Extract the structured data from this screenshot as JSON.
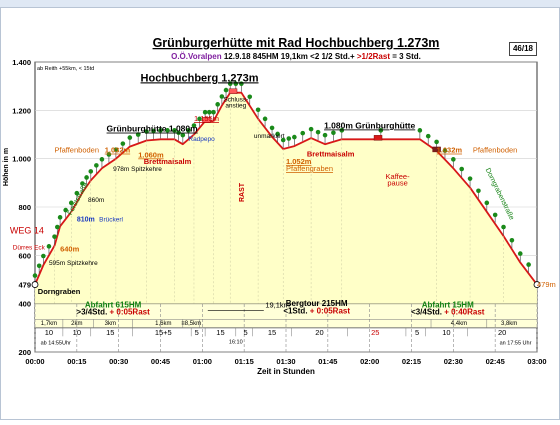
{
  "page": {
    "badge": "46/18"
  },
  "header": {
    "title": "Grünburgerhütte mit Rad",
    "title_peak": "Hochbuchberg 1.273m",
    "region": "O.Ö.Voralpen",
    "date": "12.9.18",
    "ascent": "845HM",
    "distance": "19,1km",
    "time_prefix": "<2 1/2 Std.+",
    "time_rest": ">1/2Rast",
    "time_total": "= 3 Std.",
    "corner_note": "ab Reith +55km, < 15td"
  },
  "colors": {
    "profile_fill": "#ffffc8",
    "profile_line": "#d81818",
    "bottom_band": "#ffffd8",
    "green_text": "#108010",
    "orange_text": "#d06000",
    "red_text": "#c80000",
    "blue_text": "#1838c0",
    "purple_text": "#8020a0",
    "tree": "#1a8a1a"
  },
  "chart_data": {
    "type": "area",
    "title": "Grünburgerhütte mit Rad Hochbuchberg 1.273m",
    "ylabel": "Höhen in m",
    "xlabel": "Zeit in Stunden",
    "ylim": [
      200,
      1400
    ],
    "xlim": [
      0,
      180
    ],
    "grid": true,
    "y_ticks": [
      {
        "v": 200,
        "label": "200"
      },
      {
        "v": 400,
        "label": "400"
      },
      {
        "v": 479,
        "label": "479"
      },
      {
        "v": 600,
        "label": "600"
      },
      {
        "v": 800,
        "label": "800"
      },
      {
        "v": 1000,
        "label": "1.000"
      },
      {
        "v": 1200,
        "label": "1.200"
      },
      {
        "v": 1400,
        "label": "1.400"
      }
    ],
    "x_ticks": [
      {
        "v": 0,
        "label": "00:00"
      },
      {
        "v": 15,
        "label": "00:15"
      },
      {
        "v": 30,
        "label": "00:30"
      },
      {
        "v": 45,
        "label": "00:45"
      },
      {
        "v": 60,
        "label": "01:00"
      },
      {
        "v": 75,
        "label": "01:15"
      },
      {
        "v": 90,
        "label": "01:30"
      },
      {
        "v": 105,
        "label": "01:45"
      },
      {
        "v": 120,
        "label": "02:00"
      },
      {
        "v": 135,
        "label": "02:15"
      },
      {
        "v": 150,
        "label": "02:30"
      },
      {
        "v": 165,
        "label": "02:45"
      },
      {
        "v": 180,
        "label": "03:00"
      }
    ],
    "profile": [
      {
        "x": 0,
        "y": 479
      },
      {
        "x": 3,
        "y": 560
      },
      {
        "x": 7,
        "y": 640
      },
      {
        "x": 9,
        "y": 720
      },
      {
        "x": 13,
        "y": 780
      },
      {
        "x": 17,
        "y": 860
      },
      {
        "x": 20,
        "y": 910
      },
      {
        "x": 24,
        "y": 960
      },
      {
        "x": 29,
        "y": 1000
      },
      {
        "x": 34,
        "y": 1050
      },
      {
        "x": 40,
        "y": 1075
      },
      {
        "x": 45,
        "y": 1080
      },
      {
        "x": 50,
        "y": 1080
      },
      {
        "x": 53,
        "y": 1060
      },
      {
        "x": 57,
        "y": 1100
      },
      {
        "x": 61,
        "y": 1155
      },
      {
        "x": 64,
        "y": 1155
      },
      {
        "x": 67,
        "y": 1220
      },
      {
        "x": 70,
        "y": 1273
      },
      {
        "x": 74,
        "y": 1273
      },
      {
        "x": 80,
        "y": 1165
      },
      {
        "x": 85,
        "y": 1090
      },
      {
        "x": 89,
        "y": 1040
      },
      {
        "x": 93,
        "y": 1052
      },
      {
        "x": 99,
        "y": 1085
      },
      {
        "x": 104,
        "y": 1060
      },
      {
        "x": 110,
        "y": 1080
      },
      {
        "x": 138,
        "y": 1080
      },
      {
        "x": 144,
        "y": 1032
      },
      {
        "x": 150,
        "y": 960
      },
      {
        "x": 156,
        "y": 880
      },
      {
        "x": 162,
        "y": 780
      },
      {
        "x": 168,
        "y": 680
      },
      {
        "x": 174,
        "y": 570
      },
      {
        "x": 180,
        "y": 479
      }
    ],
    "markers": [
      {
        "x": 61.5,
        "y": 1155,
        "color": "#ff5a5a"
      },
      {
        "x": 71,
        "y": 1273,
        "color": "#ff5a5a"
      },
      {
        "x": 123,
        "y": 1080,
        "color": "#d81818"
      },
      {
        "x": 144,
        "y": 1032,
        "color": "#7a1e1e"
      }
    ],
    "annotations": [
      {
        "x": 59,
        "y": 1320,
        "text": "Hochbuchberg 1.273m",
        "color": "#000000",
        "size": 11,
        "weight": "bold",
        "anchor": "middle",
        "underline": true
      },
      {
        "x": 42,
        "y": 1112,
        "text": "Grünburghütte 1.080m",
        "color": "#000000",
        "size": 8.5,
        "weight": "bold",
        "anchor": "middle",
        "underline": true
      },
      {
        "x": 120,
        "y": 1125,
        "text": "1.080m Grünburghütte",
        "color": "#000000",
        "size": 8.5,
        "weight": "bold",
        "anchor": "middle",
        "underline": true
      },
      {
        "x": 57,
        "y": 1155,
        "text": "1.155m",
        "color": "#c80000",
        "size": 7.5,
        "weight": "normal",
        "anchor": "start",
        "underline": true
      },
      {
        "x": 72,
        "y": 1237,
        "text": "Schluss-",
        "color": "#000000",
        "size": 6.5,
        "weight": "normal",
        "anchor": "middle",
        "underline": false
      },
      {
        "x": 72,
        "y": 1212,
        "text": "anstieg",
        "color": "#000000",
        "size": 6.5,
        "weight": "normal",
        "anchor": "middle",
        "underline": false
      },
      {
        "x": 84,
        "y": 1085,
        "text": "unmarkiert",
        "color": "#000000",
        "size": 6.5,
        "weight": "normal",
        "anchor": "middle",
        "underline": false
      },
      {
        "x": 7,
        "y": 1025,
        "text": "Pfaffenboden",
        "color": "#d06000",
        "size": 7.5,
        "weight": "normal",
        "anchor": "start",
        "underline": false
      },
      {
        "x": 25,
        "y": 1025,
        "text": "1.032m",
        "color": "#d06000",
        "size": 7.5,
        "weight": "bold",
        "anchor": "start",
        "underline": true
      },
      {
        "x": 37,
        "y": 1005,
        "text": "1.060m",
        "color": "#d06000",
        "size": 7.5,
        "weight": "bold",
        "anchor": "start",
        "underline": true
      },
      {
        "x": 39,
        "y": 978,
        "text": "Brettmaisalm",
        "color": "#c80000",
        "size": 7.5,
        "weight": "bold",
        "anchor": "start",
        "underline": false
      },
      {
        "x": 28,
        "y": 948,
        "text": "978m Spitzkehre",
        "color": "#000000",
        "size": 6.5,
        "weight": "normal",
        "anchor": "start",
        "underline": false
      },
      {
        "x": 55,
        "y": 1073,
        "text": "Radpepo",
        "color": "#1838c0",
        "size": 6.5,
        "weight": "normal",
        "anchor": "start",
        "underline": false
      },
      {
        "x": 90,
        "y": 978,
        "text": "1.052m",
        "color": "#d06000",
        "size": 7.5,
        "weight": "bold",
        "anchor": "start",
        "underline": true
      },
      {
        "x": 90,
        "y": 948,
        "text": "Pfaffengraben",
        "color": "#d06000",
        "size": 7.5,
        "weight": "normal",
        "anchor": "start",
        "underline": true
      },
      {
        "x": 106,
        "y": 1010,
        "text": "Brettmaisalm",
        "color": "#c80000",
        "size": 7.5,
        "weight": "bold",
        "anchor": "middle",
        "underline": false
      },
      {
        "x": 144,
        "y": 1025,
        "text": "1.032m",
        "color": "#d06000",
        "size": 7.5,
        "weight": "bold",
        "anchor": "start",
        "underline": true
      },
      {
        "x": 157,
        "y": 1025,
        "text": "Pfaffenboden",
        "color": "#d06000",
        "size": 7.5,
        "weight": "normal",
        "anchor": "start",
        "underline": false
      },
      {
        "x": 130,
        "y": 915,
        "text": "Kaffee-",
        "color": "#c80000",
        "size": 7.5,
        "weight": "normal",
        "anchor": "middle",
        "underline": false
      },
      {
        "x": 130,
        "y": 890,
        "text": "pause",
        "color": "#c80000",
        "size": 7.5,
        "weight": "normal",
        "anchor": "middle",
        "underline": false
      },
      {
        "x": 19,
        "y": 820,
        "text": "860m",
        "color": "#000000",
        "size": 6.5,
        "weight": "normal",
        "anchor": "start",
        "underline": false
      },
      {
        "x": 15,
        "y": 740,
        "text": "810m",
        "color": "#1838c0",
        "size": 7,
        "weight": "bold",
        "anchor": "start",
        "underline": false
      },
      {
        "x": 23,
        "y": 740,
        "text": "Brückerl",
        "color": "#1838c0",
        "size": 6.5,
        "weight": "normal",
        "anchor": "start",
        "underline": false
      },
      {
        "x": -9,
        "y": 690,
        "text": "WEG 14",
        "color": "#c80000",
        "size": 9,
        "weight": "normal",
        "anchor": "start",
        "underline": false
      },
      {
        "x": -8,
        "y": 625,
        "text": "Dürres Eck",
        "color": "#c80000",
        "size": 6.5,
        "weight": "normal",
        "anchor": "start",
        "underline": false
      },
      {
        "x": 9,
        "y": 616,
        "text": "640m",
        "color": "#d06000",
        "size": 7.5,
        "weight": "bold",
        "anchor": "start",
        "underline": false
      },
      {
        "x": 5,
        "y": 560,
        "text": "595m Spitzkehre",
        "color": "#000000",
        "size": 6.5,
        "weight": "normal",
        "anchor": "start",
        "underline": false
      },
      {
        "x": 1,
        "y": 440,
        "text": "Dorngraben",
        "color": "#000000",
        "size": 7.5,
        "weight": "bold",
        "anchor": "start",
        "underline": false
      },
      {
        "x": 180,
        "y": 468,
        "text": "479m",
        "color": "#d06000",
        "size": 7.5,
        "weight": "normal",
        "anchor": "start",
        "underline": false
      },
      {
        "x": 87,
        "y": 385,
        "text": "19,1km",
        "color": "#000000",
        "size": 7.5,
        "weight": "normal",
        "anchor": "middle",
        "underline": false
      },
      {
        "x": 72,
        "y": 235,
        "text": "16:10",
        "color": "#000000",
        "size": 5.5,
        "weight": "normal",
        "anchor": "middle",
        "underline": false
      },
      {
        "x": 2,
        "y": 232,
        "text": "ab 14:55Uhr",
        "color": "#000000",
        "size": 5.5,
        "weight": "normal",
        "anchor": "start",
        "underline": false
      },
      {
        "x": 178,
        "y": 232,
        "text": "an 17:55 Uhr",
        "color": "#000000",
        "size": 5.5,
        "weight": "normal",
        "anchor": "end",
        "underline": false
      }
    ],
    "rotated_labels": [
      {
        "x": 16,
        "y": 830,
        "angle": -62,
        "text": "Forststraße",
        "color": "#108010",
        "size": 7
      },
      {
        "x": 75,
        "y": 860,
        "angle": -90,
        "text": "RAST",
        "color": "#c80000",
        "size": 7,
        "weight": "bold"
      },
      {
        "x": 166,
        "y": 850,
        "angle": 64,
        "text": "Dorngrabenstraße",
        "color": "#108010",
        "size": 7
      }
    ],
    "summary_blocks": [
      {
        "x": 28,
        "y1": 385,
        "y2": 356,
        "line1": "Abfahrt 615HM",
        "line2a": ">3/4Std.",
        "line2b": "+ 0:05Rast",
        "color1": "#108010"
      },
      {
        "x": 101,
        "y1": 390,
        "y2": 360,
        "line1": "Bergtour 215HM",
        "line2a": "<1Std.",
        "line2b": "+ 0:05Rast",
        "color1": "#000000"
      },
      {
        "x": 148,
        "y1": 385,
        "y2": 356,
        "line1": "Abfahrt 15HM",
        "line2a": "<3/4Std.",
        "line2b": "+ 0:40Rast",
        "color1": "#108010"
      }
    ],
    "km_segments": [
      {
        "x": 5,
        "label": "1,7km"
      },
      {
        "x": 15,
        "label": "2km"
      },
      {
        "x": 27,
        "label": "3km"
      },
      {
        "x": 46,
        "label": "1,6km"
      },
      {
        "x": 56,
        "label": "≡8,5km"
      },
      {
        "x": 152,
        "label": "4,4km"
      },
      {
        "x": 170,
        "label": "3,8km"
      }
    ],
    "km_bounds": [
      10,
      21,
      35,
      53,
      59,
      142,
      162
    ],
    "min_segments": [
      {
        "x": 5,
        "label": "10"
      },
      {
        "x": 15,
        "label": "10"
      },
      {
        "x": 27,
        "label": "15"
      },
      {
        "x": 46,
        "label": "15+5"
      },
      {
        "x": 58,
        "label": "5"
      },
      {
        "x": 66.5,
        "label": "15"
      },
      {
        "x": 75.5,
        "label": "5"
      },
      {
        "x": 85,
        "label": "15"
      },
      {
        "x": 102,
        "label": "20"
      },
      {
        "x": 122,
        "label": "25"
      },
      {
        "x": 137,
        "label": "5"
      },
      {
        "x": 147.5,
        "label": "10"
      },
      {
        "x": 167.5,
        "label": "20"
      }
    ],
    "min_bounds": [
      10,
      20,
      35,
      56,
      61,
      72,
      78,
      92,
      112,
      133,
      140,
      155
    ]
  }
}
